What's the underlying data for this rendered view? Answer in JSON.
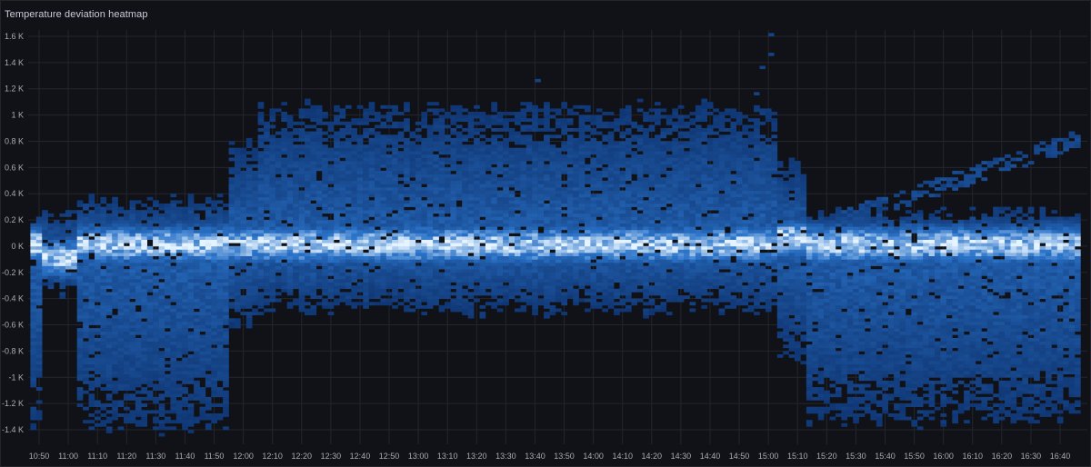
{
  "panel": {
    "title": "Temperature deviation heatmap"
  },
  "colors": {
    "background": "#111217",
    "grid": "#24262d",
    "text": "#a9abb3",
    "scale_low": "#0a2a63",
    "scale_mid": "#2a73c9",
    "scale_high": "#e6f4ff"
  },
  "chart_data": {
    "type": "heatmap",
    "title": "Temperature deviation heatmap",
    "xlabel": "",
    "ylabel": "",
    "x_ticks": [
      "10:50",
      "11:00",
      "11:10",
      "11:20",
      "11:30",
      "11:40",
      "11:50",
      "12:00",
      "12:10",
      "12:20",
      "12:30",
      "12:40",
      "12:50",
      "13:00",
      "13:10",
      "13:20",
      "13:30",
      "13:40",
      "13:50",
      "14:00",
      "14:10",
      "14:20",
      "14:30",
      "14:40",
      "14:50",
      "15:00",
      "15:10",
      "15:20",
      "15:30",
      "15:40",
      "15:50",
      "16:00",
      "16:10",
      "16:20",
      "16:30",
      "16:40"
    ],
    "y_ticks": [
      {
        "value": 1600,
        "label": "1.6 K"
      },
      {
        "value": 1400,
        "label": "1.4 K"
      },
      {
        "value": 1200,
        "label": "1.2 K"
      },
      {
        "value": 1000,
        "label": "1 K"
      },
      {
        "value": 800,
        "label": "0.8 K"
      },
      {
        "value": 600,
        "label": "0.6 K"
      },
      {
        "value": 400,
        "label": "0.4 K"
      },
      {
        "value": 200,
        "label": "0.2 K"
      },
      {
        "value": 0,
        "label": "0 K"
      },
      {
        "value": -200,
        "label": "-0.2 K"
      },
      {
        "value": -400,
        "label": "-0.4 K"
      },
      {
        "value": -600,
        "label": "-0.6 K"
      },
      {
        "value": -800,
        "label": "-0.8 K"
      },
      {
        "value": -1000,
        "label": "-1 K"
      },
      {
        "value": -1200,
        "label": "-1.2 K"
      },
      {
        "value": -1400,
        "label": "-1.4 K"
      }
    ],
    "ylim": [
      -1500,
      1650
    ],
    "xlim": [
      "10:50",
      "16:45"
    ],
    "grid": true,
    "bucket_minutes": 2,
    "bucket_size_y": 25,
    "regimes": [
      {
        "from": "10:50",
        "to": "11:02",
        "upper": 250,
        "lower": -350,
        "center": -100
      },
      {
        "from": "11:02",
        "to": "11:55",
        "upper": 350,
        "lower": -1400,
        "center": 0
      },
      {
        "from": "11:55",
        "to": "12:05",
        "upper": 800,
        "lower": -600,
        "center": 0
      },
      {
        "from": "12:05",
        "to": "15:02",
        "upper": 1050,
        "lower": -500,
        "center": 0
      },
      {
        "from": "15:02",
        "to": "15:12",
        "upper": 600,
        "lower": -900,
        "center": 50
      },
      {
        "from": "15:12",
        "to": "16:45",
        "upper": 250,
        "lower": -1350,
        "center": 0
      }
    ],
    "secondary_band": {
      "from": "15:25",
      "to": "16:45",
      "start": 200,
      "end": 800
    }
  }
}
